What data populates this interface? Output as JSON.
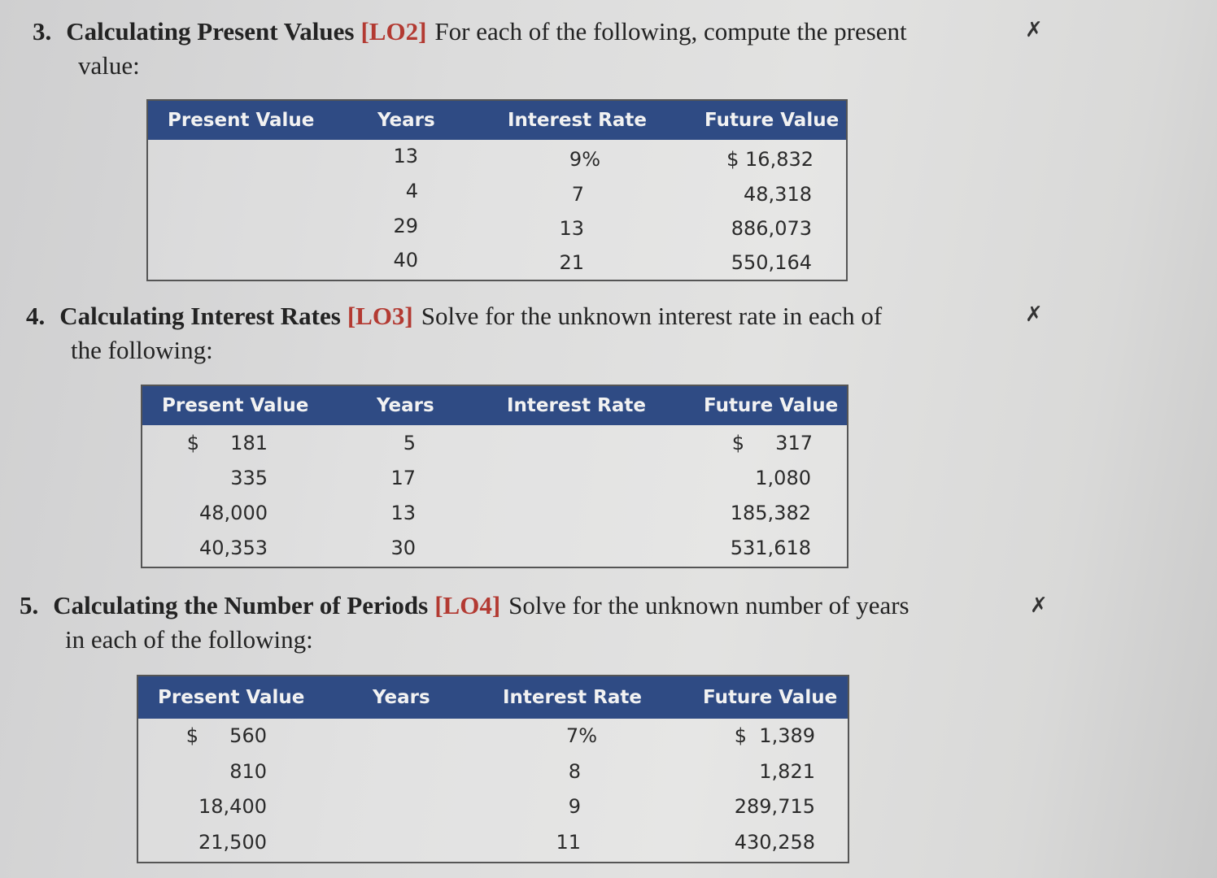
{
  "problems": [
    {
      "number": "3.",
      "title": "Calculating Present Values",
      "lo": "[LO2]",
      "text_line1": "For each of the following, compute the present",
      "text_line2": "value:",
      "headers": [
        "Present Value",
        "Years",
        "Interest Rate",
        "Future Value"
      ],
      "rows": [
        {
          "pv": "",
          "years": "13",
          "rate": "9%",
          "fv": "$ 16,832"
        },
        {
          "pv": "",
          "years": "4",
          "rate": "7",
          "fv": "48,318"
        },
        {
          "pv": "",
          "years": "29",
          "rate": "13",
          "fv": "886,073"
        },
        {
          "pv": "",
          "years": "40",
          "rate": "21",
          "fv": "550,164"
        }
      ]
    },
    {
      "number": "4.",
      "title": "Calculating Interest Rates",
      "lo": "[LO3]",
      "text_line1": "Solve for the unknown interest rate in each of",
      "text_line2": "the following:",
      "headers": [
        "Present Value",
        "Years",
        "Interest Rate",
        "Future Value"
      ],
      "rows": [
        {
          "pv": "$     181",
          "years": "5",
          "rate": "",
          "fv": "$     317"
        },
        {
          "pv": "335",
          "years": "17",
          "rate": "",
          "fv": "1,080"
        },
        {
          "pv": "48,000",
          "years": "13",
          "rate": "",
          "fv": "185,382"
        },
        {
          "pv": "40,353",
          "years": "30",
          "rate": "",
          "fv": "531,618"
        }
      ]
    },
    {
      "number": "5.",
      "title": "Calculating the Number of Periods",
      "lo": "[LO4]",
      "text_line1": "Solve for the unknown number of years",
      "text_line2": "in each of the following:",
      "headers": [
        "Present Value",
        "Years",
        "Interest Rate",
        "Future Value"
      ],
      "rows": [
        {
          "pv": "$     560",
          "years": "",
          "rate": "7%",
          "fv": "$  1,389"
        },
        {
          "pv": "810",
          "years": "",
          "rate": "8",
          "fv": "1,821"
        },
        {
          "pv": "18,400",
          "years": "",
          "rate": "9",
          "fv": "289,715"
        },
        {
          "pv": "21,500",
          "years": "",
          "rate": "11",
          "fv": "430,258"
        }
      ]
    }
  ],
  "excel_icon": "excel-x-icon"
}
